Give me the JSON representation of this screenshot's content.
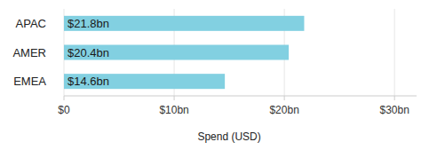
{
  "chart_data": {
    "type": "bar",
    "orientation": "horizontal",
    "categories": [
      "APAC",
      "AMER",
      "EMEA"
    ],
    "values": [
      21.8,
      20.4,
      14.6
    ],
    "value_labels": [
      "$21.8bn",
      "$20.4bn",
      "$14.6bn"
    ],
    "data_labels": true,
    "color": "#82d0e1",
    "x_label": "Spend (USD)",
    "xlim": [
      0,
      32
    ],
    "xticks": [
      {
        "value": 0,
        "label": "$0"
      },
      {
        "value": 10,
        "label": "$10bn"
      },
      {
        "value": 20,
        "label": "$20bn"
      },
      {
        "value": 30,
        "label": "$30bn"
      }
    ],
    "grid": true
  }
}
